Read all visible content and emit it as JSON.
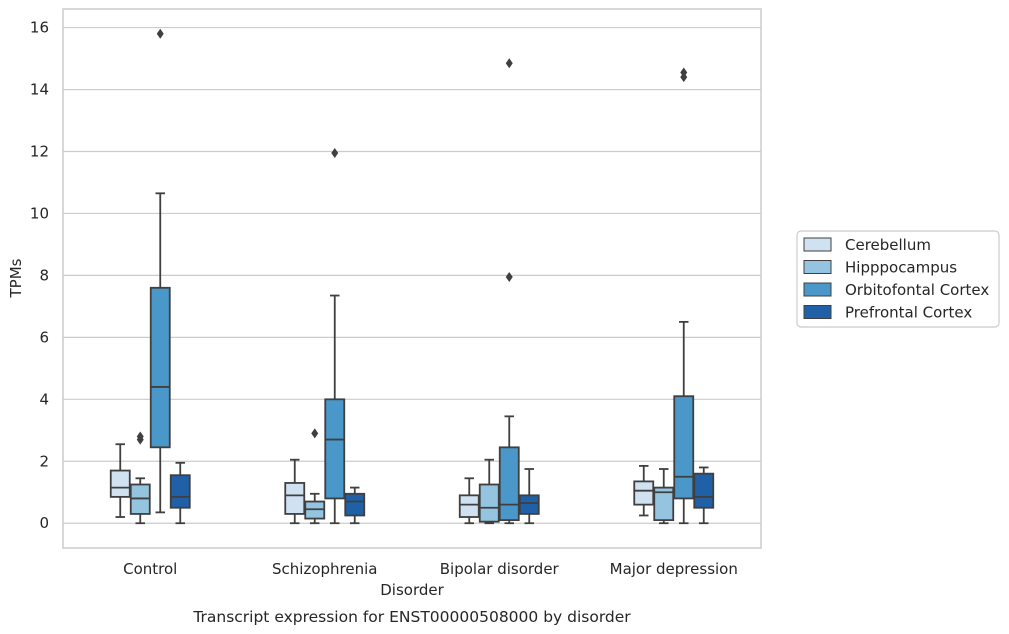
{
  "caption": "Transcript expression for ENST00000508000 by disorder",
  "chart_data": {
    "type": "boxplot",
    "title": "",
    "xlabel": "Disorder",
    "ylabel": "TPMs",
    "ylim": [
      -0.8,
      16.6
    ],
    "yticks": [
      0,
      2,
      4,
      6,
      8,
      10,
      12,
      14,
      16
    ],
    "grid": "horizontal",
    "legend_position": "right",
    "categories": [
      "Control",
      "Schizophrenia",
      "Bipolar disorder",
      "Major depression"
    ],
    "series": [
      {
        "name": "Cerebellum",
        "color": "#d0e1f2",
        "boxes": [
          {
            "whislo": 0.2,
            "q1": 0.85,
            "med": 1.15,
            "q3": 1.7,
            "whishi": 2.55,
            "fliers": []
          },
          {
            "whislo": 0.0,
            "q1": 0.3,
            "med": 0.9,
            "q3": 1.3,
            "whishi": 2.05,
            "fliers": []
          },
          {
            "whislo": 0.0,
            "q1": 0.2,
            "med": 0.6,
            "q3": 0.9,
            "whishi": 1.45,
            "fliers": []
          },
          {
            "whislo": 0.25,
            "q1": 0.6,
            "med": 1.05,
            "q3": 1.35,
            "whishi": 1.85,
            "fliers": []
          }
        ]
      },
      {
        "name": "Hipppocampus",
        "color": "#94c4df",
        "boxes": [
          {
            "whislo": 0.0,
            "q1": 0.3,
            "med": 0.8,
            "q3": 1.25,
            "whishi": 1.45,
            "fliers": [
              2.7,
              2.8
            ]
          },
          {
            "whislo": 0.0,
            "q1": 0.15,
            "med": 0.45,
            "q3": 0.7,
            "whishi": 0.95,
            "fliers": [
              2.9
            ]
          },
          {
            "whislo": 0.0,
            "q1": 0.05,
            "med": 0.5,
            "q3": 1.25,
            "whishi": 2.05,
            "fliers": []
          },
          {
            "whislo": 0.0,
            "q1": 0.1,
            "med": 1.0,
            "q3": 1.15,
            "whishi": 1.75,
            "fliers": []
          }
        ]
      },
      {
        "name": "Orbitofontal Cortex",
        "color": "#4a98c9",
        "boxes": [
          {
            "whislo": 0.35,
            "q1": 2.45,
            "med": 4.4,
            "q3": 7.6,
            "whishi": 10.65,
            "fliers": [
              15.8
            ]
          },
          {
            "whislo": 0.0,
            "q1": 0.8,
            "med": 2.7,
            "q3": 4.0,
            "whishi": 7.35,
            "fliers": [
              11.95
            ]
          },
          {
            "whislo": 0.0,
            "q1": 0.1,
            "med": 0.6,
            "q3": 2.45,
            "whishi": 3.45,
            "fliers": [
              7.95,
              14.85
            ]
          },
          {
            "whislo": 0.0,
            "q1": 0.8,
            "med": 1.5,
            "q3": 4.1,
            "whishi": 6.5,
            "fliers": [
              14.4,
              14.55
            ]
          }
        ]
      },
      {
        "name": "Prefrontal Cortex",
        "color": "#2060a7",
        "boxes": [
          {
            "whislo": 0.0,
            "q1": 0.5,
            "med": 0.85,
            "q3": 1.55,
            "whishi": 1.95,
            "fliers": []
          },
          {
            "whislo": 0.0,
            "q1": 0.25,
            "med": 0.7,
            "q3": 0.95,
            "whishi": 1.15,
            "fliers": []
          },
          {
            "whislo": 0.0,
            "q1": 0.3,
            "med": 0.65,
            "q3": 0.9,
            "whishi": 1.75,
            "fliers": []
          },
          {
            "whislo": 0.0,
            "q1": 0.5,
            "med": 0.85,
            "q3": 1.6,
            "whishi": 1.8,
            "fliers": []
          }
        ]
      }
    ]
  }
}
